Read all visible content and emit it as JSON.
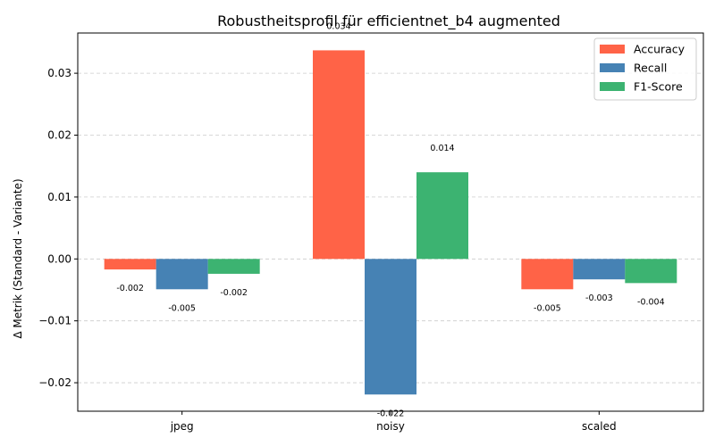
{
  "chart_data": {
    "type": "bar",
    "title": "Robustheitsprofil für efficientnet_b4 augmented",
    "xlabel": "",
    "ylabel": "Δ Metrik (Standard - Variante)",
    "categories": [
      "jpeg",
      "noisy",
      "scaled"
    ],
    "series": [
      {
        "name": "Accuracy",
        "color": "#ff6347",
        "values": [
          -0.0017,
          0.0337,
          -0.0049
        ],
        "labels": [
          "-0.002",
          "0.034",
          "-0.005"
        ]
      },
      {
        "name": "Recall",
        "color": "#4682b4",
        "values": [
          -0.0049,
          -0.0219,
          -0.0033
        ],
        "labels": [
          "-0.005",
          "-0.022",
          "-0.003"
        ]
      },
      {
        "name": "F1-Score",
        "color": "#3cb371",
        "values": [
          -0.0024,
          0.014,
          -0.0039
        ],
        "labels": [
          "-0.002",
          "0.014",
          "-0.004"
        ]
      }
    ],
    "ylim": [
      -0.0246,
      0.0365
    ],
    "yticks": [
      -0.02,
      -0.01,
      0.0,
      0.01,
      0.02,
      0.03
    ],
    "ytick_labels": [
      "−0.02",
      "−0.01",
      "0.00",
      "0.01",
      "0.02",
      "0.03"
    ],
    "grid": "y-dashed",
    "legend_position": "top-right"
  }
}
